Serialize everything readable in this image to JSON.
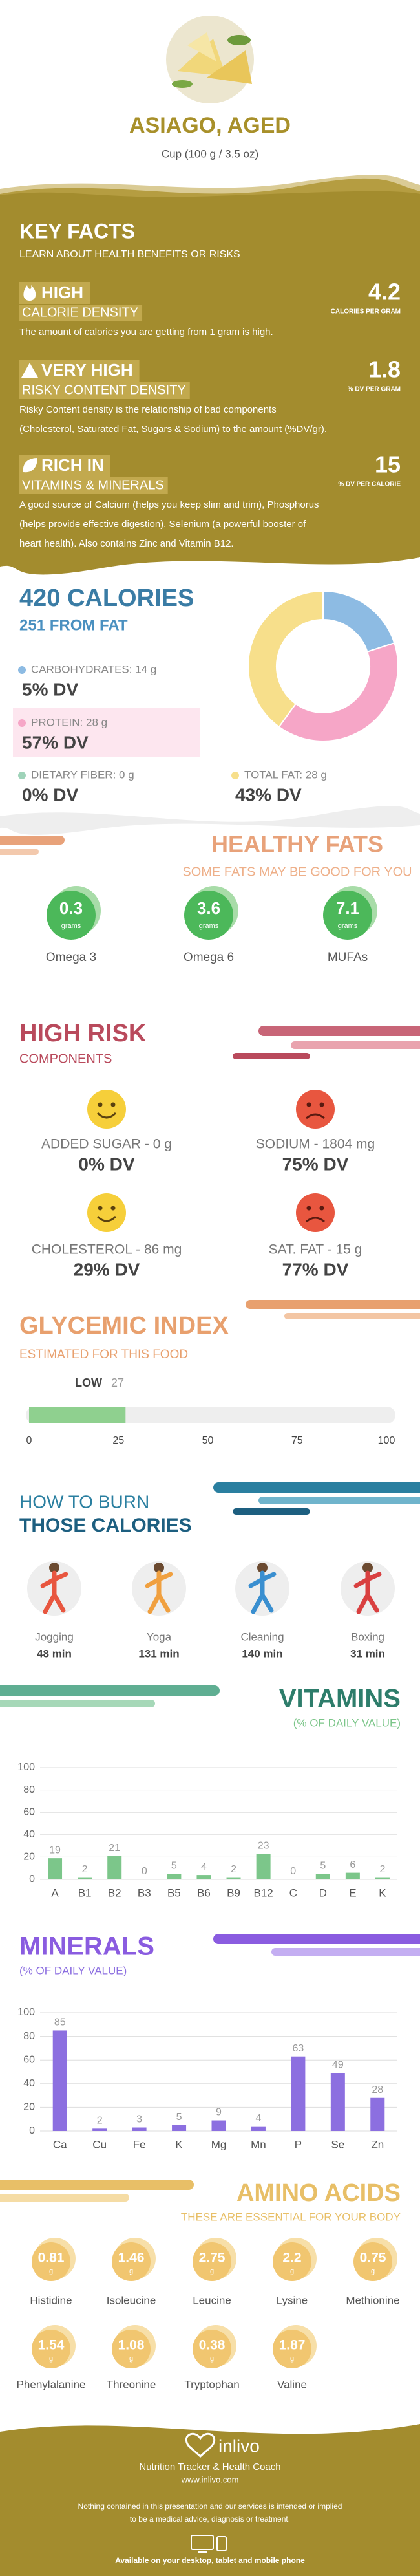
{
  "header": {
    "title": "ASIAGO, AGED",
    "subtitle": "Cup (100 g / 3.5 oz)"
  },
  "key_facts": {
    "title": "KEY FACTS",
    "subtitle": "LEARN ABOUT HEALTH BENEFITS OR RISKS",
    "items": [
      {
        "level": "HIGH",
        "label": "CALORIE DENSITY",
        "value": 4.2,
        "unit": "CALORIES PER GRAM",
        "description": [
          "The amount of calories you are getting from 1 gram is high."
        ]
      },
      {
        "level": "VERY HIGH",
        "label": "RISKY CONTENT DENSITY",
        "value": 1.8,
        "unit": "% DV PER GRAM",
        "description": [
          "Risky Content density is the relationship of bad components",
          "(Cholesterol, Saturated Fat, Sugars & Sodium) to the amount (%DV/gr)."
        ]
      },
      {
        "level": "RICH  IN",
        "label": "VITAMINS & MINERALS",
        "value": 15,
        "unit": "% DV PER CALORIE",
        "description": [
          "A good source of Calcium (helps you keep slim and trim), Phosphorus",
          "(helps provide effective digestion), Selenium (a powerful booster of",
          "heart health). Also contains Zinc and Vitamin B12."
        ]
      }
    ]
  },
  "calories": {
    "title": "420 CALORIES",
    "from_fat": "251 FROM FAT",
    "nutrients": [
      {
        "name": "CARBOHYDRATES: 14 g",
        "grams": 14,
        "dv": "5% DV",
        "color": "#8dbbe3"
      },
      {
        "name": "PROTEIN: 28 g",
        "grams": 28,
        "dv": "57% DV",
        "color": "#f6a6c7"
      },
      {
        "name": "DIETARY FIBER: 0 g",
        "grams": 0,
        "dv": "0% DV",
        "color": "#9fd3b9"
      },
      {
        "name": "TOTAL FAT: 28 g",
        "grams": 28,
        "dv": "43% DV",
        "color": "#f7df8b"
      }
    ]
  },
  "healthy_fats": {
    "title": "HEALTHY FATS",
    "subtitle": "SOME FATS MAY BE GOOD FOR YOU",
    "items": [
      {
        "value": 0.3,
        "unit": "grams",
        "name": "Omega 3"
      },
      {
        "value": 3.6,
        "unit": "grams",
        "name": "Omega 6"
      },
      {
        "value": 7.1,
        "unit": "grams",
        "name": "MUFAs"
      }
    ]
  },
  "high_risk": {
    "title": "HIGH RISK",
    "subtitle": "COMPONENTS",
    "items": [
      {
        "name": "ADDED SUGAR - 0 g",
        "dv": "0% DV"
      },
      {
        "name": "SODIUM - 1804 mg",
        "dv": "75% DV"
      },
      {
        "name": "CHOLESTEROL - 86 mg",
        "dv": "29% DV"
      },
      {
        "name": "SAT. FAT - 15 g",
        "dv": "77% DV"
      }
    ]
  },
  "glycemic": {
    "title": "GLYCEMIC INDEX",
    "subtitle": "ESTIMATED FOR THIS FOOD",
    "level": "LOW",
    "value": 27,
    "color": "#8fd08f",
    "xlim": [
      0,
      100
    ],
    "xticks": [
      0,
      25,
      50,
      75,
      100
    ]
  },
  "burn": {
    "title": "HOW TO BURN",
    "subtitle": "THOSE CALORIES",
    "items": [
      {
        "name": "Jogging",
        "time": "48 min"
      },
      {
        "name": "Yoga",
        "time": "131 min"
      },
      {
        "name": "Cleaning",
        "time": "140 min"
      },
      {
        "name": "Boxing",
        "time": "31 min"
      }
    ]
  },
  "vitamins": {
    "type": "bar",
    "title": "VITAMINS",
    "subtitle": "(% OF DAILY VALUE)",
    "color": "#7cc68a",
    "categories": [
      "A",
      "B1",
      "B2",
      "B3",
      "B5",
      "B6",
      "B9",
      "B12",
      "C",
      "D",
      "E",
      "K"
    ],
    "values": [
      19,
      2,
      21,
      0,
      5,
      4,
      2,
      23,
      0,
      5,
      6,
      2
    ],
    "ylim": [
      0,
      100
    ],
    "yticks": [
      0,
      20,
      40,
      60,
      80,
      100
    ],
    "grid": true
  },
  "minerals": {
    "type": "bar",
    "title": "MINERALS",
    "subtitle": "(% OF DAILY VALUE)",
    "color": "#8c6fe0",
    "categories": [
      "Ca",
      "Cu",
      "Fe",
      "K",
      "Mg",
      "Mn",
      "P",
      "Se",
      "Zn"
    ],
    "values": [
      85,
      2,
      3,
      5,
      9,
      4,
      63,
      49,
      28
    ],
    "ylim": [
      0,
      100
    ],
    "yticks": [
      0,
      20,
      40,
      60,
      80,
      100
    ],
    "grid": true
  },
  "amino_acids": {
    "title": "AMINO ACIDS",
    "subtitle": "THESE ARE ESSENTIAL FOR YOUR BODY",
    "items": [
      {
        "value": 0.81,
        "unit": "g",
        "name": "Histidine"
      },
      {
        "value": 1.46,
        "unit": "g",
        "name": "Isoleucine"
      },
      {
        "value": 2.75,
        "unit": "g",
        "name": "Leucine"
      },
      {
        "value": 2.2,
        "unit": "g",
        "name": "Lysine"
      },
      {
        "value": 0.75,
        "unit": "g",
        "name": "Methionine"
      },
      {
        "value": 1.54,
        "unit": "g",
        "name": "Phenylalanine"
      },
      {
        "value": 1.08,
        "unit": "g",
        "name": "Threonine"
      },
      {
        "value": 0.38,
        "unit": "g",
        "name": "Tryptophan"
      },
      {
        "value": 1.87,
        "unit": "g",
        "name": "Valine"
      }
    ]
  },
  "footer": {
    "brand": "inlivo",
    "tagline": "Nutrition Tracker & Health Coach",
    "url": "www.inlivo.com",
    "disclaimer": [
      "Nothing contained in this presentation and our services is intended or implied",
      "to be a medical advice, diagnosis or treatment."
    ],
    "availability": "Available on your desktop, tablet and mobile phone"
  }
}
